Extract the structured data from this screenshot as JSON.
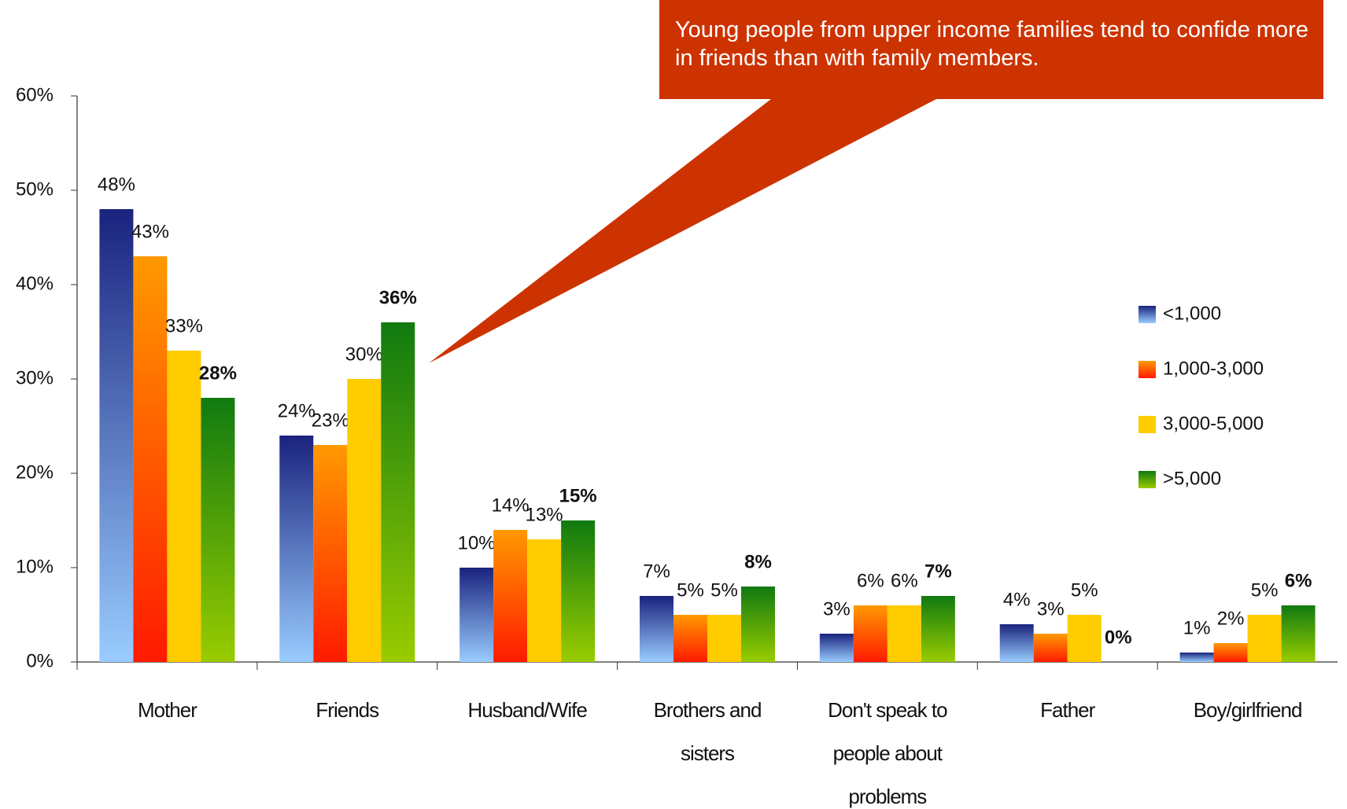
{
  "chart_data": {
    "type": "bar",
    "annotation": "Young people from upper income families tend to confide more in friends  than with family members.",
    "categories": [
      "Mother",
      "Friends",
      "Husband/Wife",
      "Brothers and sisters",
      "Don't speak to people about problems",
      "Father",
      "Boy/girlfriend"
    ],
    "series": [
      {
        "name": "<1,000",
        "color": "#1a237e",
        "values": [
          48,
          24,
          10,
          7,
          3,
          4,
          1
        ],
        "value_labels": [
          "48%",
          "24%",
          "10%",
          "7%",
          "3%",
          "4%",
          "1%"
        ]
      },
      {
        "name": "1,000-3,000",
        "color": "#ff9900",
        "values": [
          43,
          23,
          14,
          5,
          6,
          3,
          2
        ],
        "value_labels": [
          "43%",
          "23%",
          "14%",
          "5%",
          "6%",
          "3%",
          "2%"
        ]
      },
      {
        "name": "3,000-5,000",
        "color": "#ffcc00",
        "values": [
          33,
          30,
          13,
          5,
          6,
          5,
          5
        ],
        "value_labels": [
          "33%",
          "30%",
          "13%",
          "5%",
          "6%",
          "5%",
          "5%"
        ]
      },
      {
        "name": ">5,000",
        "color": "#107a10",
        "values": [
          28,
          36,
          15,
          8,
          7,
          0,
          6
        ],
        "value_labels": [
          "28%",
          "36%",
          "15%",
          "8%",
          "7%",
          "0%",
          "6%"
        ]
      }
    ],
    "ylim": [
      0,
      60
    ],
    "yticks": [
      {
        "value": 0,
        "label": "0%"
      },
      {
        "value": 10,
        "label": "10%"
      },
      {
        "value": 20,
        "label": "20%"
      },
      {
        "value": 30,
        "label": "30%"
      },
      {
        "value": 40,
        "label": "40%"
      },
      {
        "value": 50,
        "label": "50%"
      },
      {
        "value": 60,
        "label": "60%"
      }
    ],
    "legend": "right"
  }
}
